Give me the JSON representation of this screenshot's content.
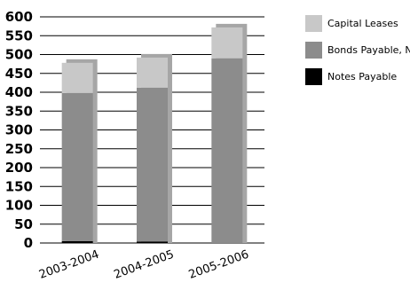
{
  "chart_data": {
    "type": "bar",
    "stacked": true,
    "title": "",
    "xlabel": "",
    "ylabel": "",
    "categories": [
      "2003-2004",
      "2004-2005",
      "2005-2006"
    ],
    "series": [
      {
        "name": "Notes Payable",
        "values": [
          5,
          4,
          0
        ],
        "color": "#000000"
      },
      {
        "name": "Bonds Payable, Net",
        "values": [
          393,
          408,
          490
        ],
        "color": "#8c8c8c"
      },
      {
        "name": "Capital Leases",
        "values": [
          80,
          80,
          82
        ],
        "color": "#c8c8c8"
      }
    ],
    "ylim": [
      0,
      600
    ],
    "yticks": [
      0,
      50,
      100,
      150,
      200,
      250,
      300,
      350,
      400,
      450,
      500,
      550,
      600
    ],
    "grid": true,
    "legend_position": "right"
  }
}
